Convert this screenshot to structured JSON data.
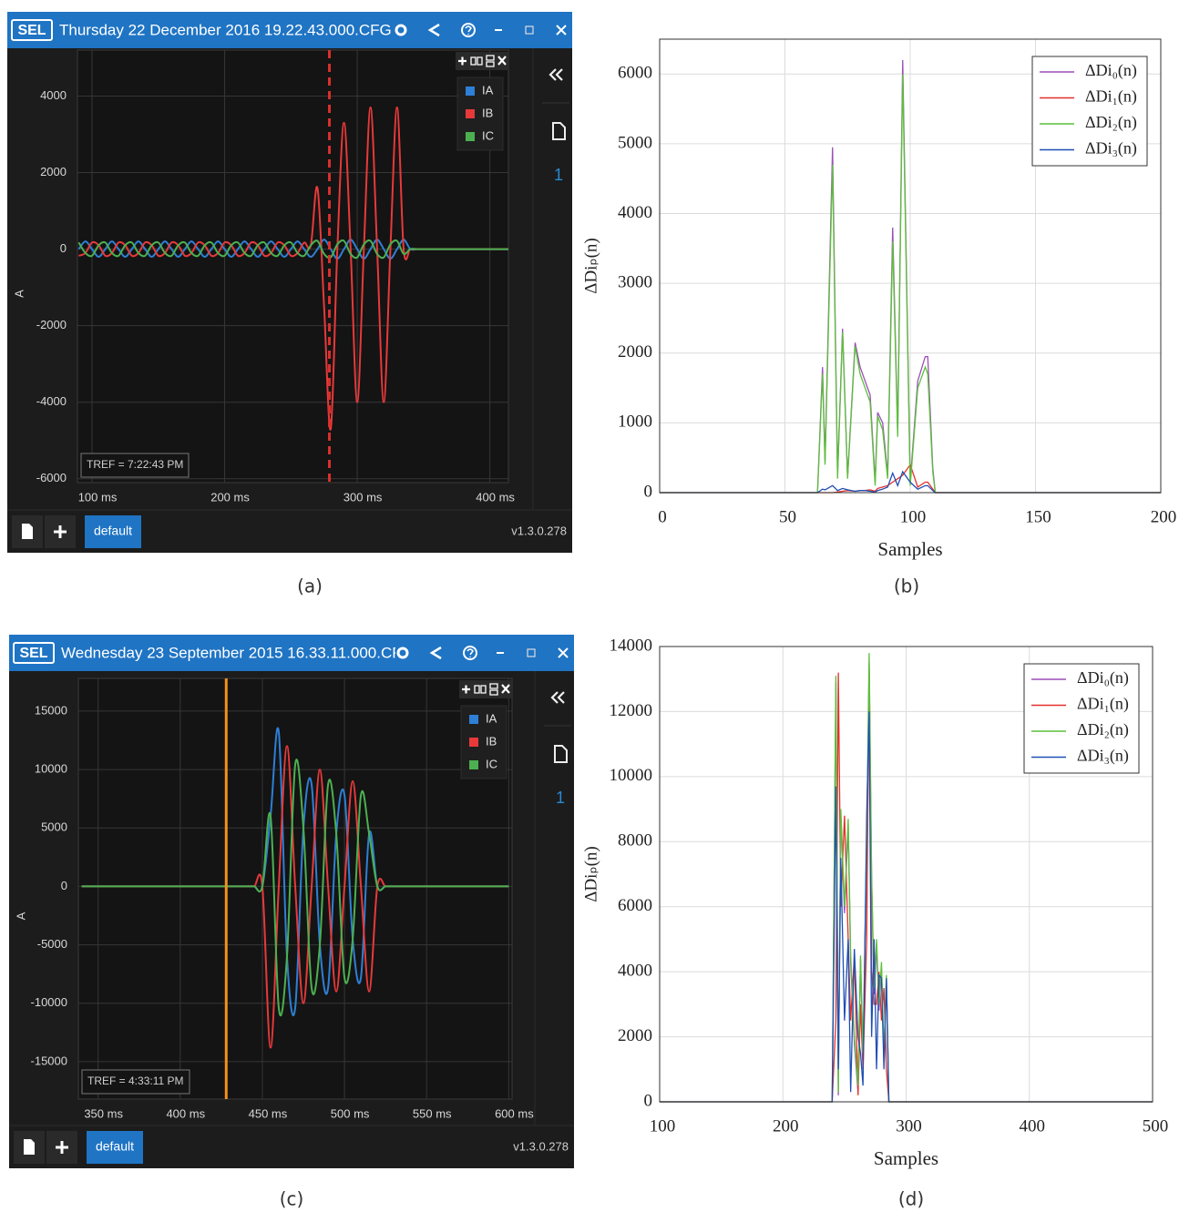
{
  "chart_data": [
    {
      "type": "line",
      "logo": "SEL",
      "window_title": "Thursday 22 December 2016 19.22.43.000.CFG -",
      "caption": "(a)",
      "ylabel": "A",
      "x": [
        90,
        95,
        100,
        105,
        110,
        115,
        120,
        125,
        130,
        135,
        140,
        145,
        150,
        155,
        160,
        165,
        170,
        175,
        180,
        185,
        190,
        195,
        200,
        205,
        210,
        215,
        220,
        225,
        230,
        235,
        240,
        245,
        250,
        255,
        260,
        265,
        270,
        275,
        280,
        285,
        290,
        295,
        300,
        305,
        310,
        315,
        320,
        325,
        330,
        335,
        340,
        345,
        350,
        355,
        360,
        365,
        370,
        375,
        380,
        385,
        390,
        395,
        400,
        405,
        410,
        415
      ],
      "xlim": [
        89,
        414
      ],
      "xticks": [
        {
          "value": 100,
          "label": "100 ms"
        },
        {
          "value": 200,
          "label": "200 ms"
        },
        {
          "value": 300,
          "label": "300 ms"
        },
        {
          "value": 400,
          "label": "400 ms"
        }
      ],
      "ylim": [
        -6100,
        5200
      ],
      "yticks": [
        4000,
        2000,
        0,
        -2000,
        -4000,
        -6000
      ],
      "grid": true,
      "series": [
        {
          "name": "IA",
          "color": "#2e7fd6",
          "values": [
            0,
            200,
            0,
            -200,
            0,
            200,
            0,
            -200,
            0,
            200,
            0,
            -200,
            0,
            200,
            0,
            -200,
            0,
            200,
            0,
            -200,
            0,
            200,
            0,
            -200,
            0,
            200,
            0,
            -200,
            0,
            200,
            0,
            -200,
            0,
            200,
            0,
            -200,
            0,
            250,
            0,
            -250,
            0,
            250,
            0,
            -250,
            0,
            250,
            0,
            -250,
            0,
            250,
            0,
            0,
            0,
            0,
            0,
            0,
            0,
            0,
            0,
            0,
            0,
            0,
            0,
            0,
            0,
            0
          ]
        },
        {
          "name": "IB",
          "color": "#e8393a",
          "values": [
            -173,
            -100,
            173,
            100,
            -173,
            -100,
            173,
            100,
            -173,
            -100,
            173,
            100,
            -173,
            -100,
            173,
            100,
            -173,
            -100,
            173,
            100,
            -173,
            -100,
            173,
            100,
            -173,
            -100,
            173,
            100,
            -173,
            -100,
            173,
            100,
            -173,
            -100,
            173,
            100,
            1600,
            -1500,
            -4700,
            0,
            3300,
            0,
            -4000,
            0,
            3700,
            0,
            -4000,
            0,
            3700,
            0,
            0,
            0,
            0,
            0,
            0,
            0,
            0,
            0,
            0,
            0,
            0,
            0,
            0,
            0,
            0,
            0
          ]
        },
        {
          "name": "IC",
          "color": "#4cb050",
          "values": [
            173,
            -100,
            -173,
            100,
            173,
            -100,
            -173,
            100,
            173,
            -100,
            -173,
            100,
            173,
            -100,
            -173,
            100,
            173,
            -100,
            -173,
            100,
            173,
            -100,
            -173,
            100,
            173,
            -100,
            -173,
            100,
            173,
            -100,
            -173,
            100,
            173,
            -100,
            -173,
            100,
            216,
            -125,
            -216,
            125,
            216,
            -125,
            -216,
            125,
            216,
            -125,
            -216,
            125,
            216,
            -125,
            0,
            0,
            0,
            0,
            0,
            0,
            0,
            0,
            0,
            0,
            0,
            0,
            0,
            0,
            0,
            0
          ]
        }
      ],
      "cursor": {
        "x": 279,
        "color": "#d9302c",
        "dashed": true
      },
      "annotation": "TREF = 7:22:43 PM",
      "tab": "default",
      "version": "v1.3.0.278",
      "page": "1"
    },
    {
      "type": "line",
      "caption": "(b)",
      "xlabel": "Samples",
      "ylabel": "ΔDiₚ(n)",
      "x": [
        0,
        63,
        65,
        66,
        69,
        71,
        73,
        75,
        78,
        80,
        82,
        84,
        86,
        87,
        89,
        91,
        93,
        95,
        97,
        100,
        103,
        106,
        107,
        109,
        110,
        200
      ],
      "xlim": [
        0,
        200
      ],
      "xticks": [
        0,
        50,
        100,
        150,
        200
      ],
      "ylim": [
        0,
        6500
      ],
      "yticks": [
        0,
        1000,
        2000,
        3000,
        4000,
        5000,
        6000
      ],
      "grid": true,
      "legend": "upper right",
      "series": [
        {
          "name": "ΔDi₀(n)",
          "color": "#9b4fb8",
          "values": [
            0,
            0,
            1800,
            450,
            4950,
            250,
            2350,
            220,
            2150,
            1800,
            1600,
            1400,
            150,
            1150,
            1000,
            250,
            3800,
            850,
            6200,
            150,
            1600,
            1950,
            1950,
            350,
            0,
            0
          ]
        },
        {
          "name": "ΔDi₁(n)",
          "color": "#e3302a",
          "values": [
            0,
            0,
            0,
            0,
            0,
            10,
            20,
            30,
            20,
            30,
            30,
            40,
            20,
            60,
            80,
            100,
            150,
            200,
            250,
            400,
            80,
            150,
            150,
            50,
            0,
            0
          ]
        },
        {
          "name": "ΔDi₂(n)",
          "color": "#5cbf3a",
          "values": [
            0,
            0,
            1700,
            400,
            4700,
            200,
            2300,
            200,
            2100,
            1700,
            1500,
            1300,
            100,
            1100,
            900,
            200,
            3600,
            800,
            6000,
            100,
            1500,
            1800,
            1700,
            300,
            0,
            0
          ]
        },
        {
          "name": "ΔDi₃(n)",
          "color": "#1f4fb5",
          "values": [
            0,
            0,
            50,
            40,
            100,
            30,
            60,
            40,
            20,
            30,
            30,
            20,
            10,
            30,
            50,
            80,
            280,
            100,
            300,
            150,
            50,
            100,
            100,
            30,
            0,
            0
          ]
        }
      ]
    },
    {
      "type": "line",
      "logo": "SEL",
      "window_title": "Wednesday 23 September 2015 16.33.11.000.CF",
      "caption": "(c)",
      "ylabel": "A",
      "x": [
        340,
        345,
        350,
        355,
        360,
        365,
        370,
        375,
        380,
        385,
        390,
        395,
        400,
        405,
        410,
        415,
        420,
        425,
        430,
        435,
        440,
        445,
        450,
        455,
        460,
        465,
        470,
        475,
        480,
        485,
        490,
        495,
        500,
        505,
        510,
        515,
        520,
        525,
        530,
        535,
        540,
        545,
        550,
        555,
        560,
        565,
        570,
        575,
        580,
        585,
        590,
        595,
        600
      ],
      "xlim": [
        338,
        602
      ],
      "xticks": [
        {
          "value": 350,
          "label": "350 ms"
        },
        {
          "value": 400,
          "label": "400 ms"
        },
        {
          "value": 450,
          "label": "450 ms"
        },
        {
          "value": 500,
          "label": "500 ms"
        },
        {
          "value": 550,
          "label": "550 ms"
        },
        {
          "value": 600,
          "label": "600 ms"
        }
      ],
      "ylim": [
        -18200,
        17800
      ],
      "yticks": [
        15000,
        10000,
        5000,
        0,
        -5000,
        -10000,
        -15000
      ],
      "grid": true,
      "series": [
        {
          "name": "IA",
          "color": "#2e7fd6",
          "values": [
            0,
            0,
            0,
            0,
            0,
            0,
            0,
            0,
            0,
            0,
            0,
            0,
            0,
            0,
            0,
            0,
            0,
            0,
            0,
            0,
            0,
            0,
            0,
            6000,
            13200,
            -6000,
            -10400,
            5000,
            8700,
            -5000,
            -8700,
            4500,
            7800,
            -4500,
            -7800,
            4500,
            0,
            0,
            0,
            0,
            0,
            0,
            0,
            0,
            0,
            0,
            0,
            0,
            0,
            0,
            0,
            0,
            0
          ]
        },
        {
          "name": "IB",
          "color": "#e8393a",
          "values": [
            0,
            0,
            0,
            0,
            0,
            0,
            0,
            0,
            0,
            0,
            0,
            0,
            0,
            0,
            0,
            0,
            0,
            0,
            0,
            0,
            0,
            0,
            0,
            -13800,
            0,
            12000,
            0,
            -10000,
            0,
            10000,
            0,
            -9000,
            0,
            9000,
            0,
            -9000,
            0,
            0,
            0,
            0,
            0,
            0,
            0,
            0,
            0,
            0,
            0,
            0,
            0,
            0,
            0,
            0,
            0
          ]
        },
        {
          "name": "IC",
          "color": "#4cb050",
          "values": [
            0,
            0,
            0,
            0,
            0,
            0,
            0,
            0,
            0,
            0,
            0,
            0,
            0,
            0,
            0,
            0,
            0,
            0,
            0,
            0,
            0,
            0,
            0,
            6000,
            -10400,
            -6000,
            10400,
            5000,
            -8700,
            -5000,
            8700,
            4500,
            -7800,
            -4500,
            7800,
            4500,
            0,
            0,
            0,
            0,
            0,
            0,
            0,
            0,
            0,
            0,
            0,
            0,
            0,
            0,
            0,
            0,
            0
          ]
        }
      ],
      "cursor": {
        "x": 428,
        "color": "#f0921e",
        "dashed": false
      },
      "annotation": "TREF = 4:33:11 PM",
      "tab": "default",
      "version": "v1.3.0.278",
      "page": "1"
    },
    {
      "type": "line",
      "caption": "(d)",
      "xlabel": "Samples",
      "ylabel": "ΔDiₚ(n)",
      "x": [
        100,
        240,
        243,
        245,
        247,
        250,
        253,
        255,
        258,
        261,
        263,
        265,
        268,
        270,
        272,
        274,
        276,
        278,
        280,
        282,
        284,
        286,
        500
      ],
      "xlim": [
        100,
        500
      ],
      "xticks": [
        100,
        200,
        300,
        400,
        500
      ],
      "ylim": [
        0,
        14000
      ],
      "yticks": [
        0,
        2000,
        4000,
        6000,
        8000,
        10000,
        12000,
        14000
      ],
      "grid": true,
      "legend": "upper right",
      "series": [
        {
          "name": "ΔDi₀(n)",
          "color": "#9b4fb8",
          "values": [
            0,
            0,
            12900,
            200,
            8800,
            5800,
            8500,
            4300,
            1800,
            300,
            4400,
            1300,
            7800,
            13500,
            6800,
            3300,
            4800,
            2800,
            4100,
            1300,
            3800,
            0,
            0
          ]
        },
        {
          "name": "ΔDi₁(n)",
          "color": "#e3302a",
          "values": [
            0,
            0,
            2500,
            13200,
            6000,
            8800,
            5000,
            2500,
            4500,
            200,
            3000,
            1000,
            5000,
            13300,
            4000,
            3000,
            3000,
            4000,
            2500,
            3500,
            1000,
            0,
            0
          ]
        },
        {
          "name": "ΔDi₂(n)",
          "color": "#5cbf3a",
          "values": [
            0,
            0,
            13100,
            300,
            9000,
            6000,
            8700,
            4500,
            2000,
            500,
            4500,
            1500,
            8000,
            13800,
            7000,
            3500,
            5000,
            3000,
            4300,
            1500,
            3900,
            0,
            0
          ]
        },
        {
          "name": "ΔDi₃(n)",
          "color": "#1f4fb5",
          "values": [
            0,
            0,
            9700,
            1000,
            7500,
            2500,
            5000,
            300,
            4700,
            2000,
            1500,
            500,
            8800,
            12000,
            2000,
            5000,
            1000,
            3900,
            3800,
            1000,
            3800,
            0,
            0
          ]
        }
      ]
    }
  ]
}
